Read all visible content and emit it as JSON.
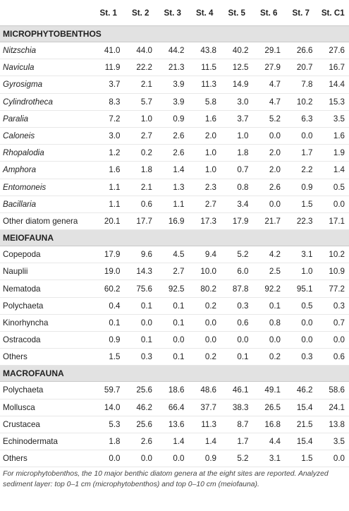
{
  "columns": [
    "",
    "St. 1",
    "St. 2",
    "St. 3",
    "St. 4",
    "St. 5",
    "St. 6",
    "St. 7",
    "St. C1"
  ],
  "sections": [
    {
      "title": "MICROPHYTOBENTHOS",
      "italic": true,
      "rows": [
        {
          "name": "Nitzschia",
          "values": [
            "41.0",
            "44.0",
            "44.2",
            "43.8",
            "40.2",
            "29.1",
            "26.6",
            "27.6"
          ],
          "italic": true
        },
        {
          "name": "Navicula",
          "values": [
            "11.9",
            "22.2",
            "21.3",
            "11.5",
            "12.5",
            "27.9",
            "20.7",
            "16.7"
          ],
          "italic": true
        },
        {
          "name": "Gyrosigma",
          "values": [
            "3.7",
            "2.1",
            "3.9",
            "11.3",
            "14.9",
            "4.7",
            "7.8",
            "14.4"
          ],
          "italic": true
        },
        {
          "name": "Cylindrotheca",
          "values": [
            "8.3",
            "5.7",
            "3.9",
            "5.8",
            "3.0",
            "4.7",
            "10.2",
            "15.3"
          ],
          "italic": true
        },
        {
          "name": "Paralia",
          "values": [
            "7.2",
            "1.0",
            "0.9",
            "1.6",
            "3.7",
            "5.2",
            "6.3",
            "3.5"
          ],
          "italic": true
        },
        {
          "name": "Caloneis",
          "values": [
            "3.0",
            "2.7",
            "2.6",
            "2.0",
            "1.0",
            "0.0",
            "0.0",
            "1.6"
          ],
          "italic": true
        },
        {
          "name": "Rhopalodia",
          "values": [
            "1.2",
            "0.2",
            "2.6",
            "1.0",
            "1.8",
            "2.0",
            "1.7",
            "1.9"
          ],
          "italic": true
        },
        {
          "name": "Amphora",
          "values": [
            "1.6",
            "1.8",
            "1.4",
            "1.0",
            "0.7",
            "2.0",
            "2.2",
            "1.4"
          ],
          "italic": true
        },
        {
          "name": "Entomoneis",
          "values": [
            "1.1",
            "2.1",
            "1.3",
            "2.3",
            "0.8",
            "2.6",
            "0.9",
            "0.5"
          ],
          "italic": true
        },
        {
          "name": "Bacillaria",
          "values": [
            "1.1",
            "0.6",
            "1.1",
            "2.7",
            "3.4",
            "0.0",
            "1.5",
            "0.0"
          ],
          "italic": true
        },
        {
          "name": "Other diatom genera",
          "values": [
            "20.1",
            "17.7",
            "16.9",
            "17.3",
            "17.9",
            "21.7",
            "22.3",
            "17.1"
          ],
          "italic": false
        }
      ]
    },
    {
      "title": "MEIOFAUNA",
      "rows": [
        {
          "name": "Copepoda",
          "values": [
            "17.9",
            "9.6",
            "4.5",
            "9.4",
            "5.2",
            "4.2",
            "3.1",
            "10.2"
          ],
          "italic": false
        },
        {
          "name": "Nauplii",
          "values": [
            "19.0",
            "14.3",
            "2.7",
            "10.0",
            "6.0",
            "2.5",
            "1.0",
            "10.9"
          ],
          "italic": false
        },
        {
          "name": "Nematoda",
          "values": [
            "60.2",
            "75.6",
            "92.5",
            "80.2",
            "87.8",
            "92.2",
            "95.1",
            "77.2"
          ],
          "italic": false
        },
        {
          "name": "Polychaeta",
          "values": [
            "0.4",
            "0.1",
            "0.1",
            "0.2",
            "0.3",
            "0.1",
            "0.5",
            "0.3"
          ],
          "italic": false
        },
        {
          "name": "Kinorhyncha",
          "values": [
            "0.1",
            "0.0",
            "0.1",
            "0.0",
            "0.6",
            "0.8",
            "0.0",
            "0.7"
          ],
          "italic": false
        },
        {
          "name": "Ostracoda",
          "values": [
            "0.9",
            "0.1",
            "0.0",
            "0.0",
            "0.0",
            "0.0",
            "0.0",
            "0.0"
          ],
          "italic": false
        },
        {
          "name": "Others",
          "values": [
            "1.5",
            "0.3",
            "0.1",
            "0.2",
            "0.1",
            "0.2",
            "0.3",
            "0.6"
          ],
          "italic": false
        }
      ]
    },
    {
      "title": "MACROFAUNA",
      "rows": [
        {
          "name": "Polychaeta",
          "values": [
            "59.7",
            "25.6",
            "18.6",
            "48.6",
            "46.1",
            "49.1",
            "46.2",
            "58.6"
          ],
          "italic": false
        },
        {
          "name": "Mollusca",
          "values": [
            "14.0",
            "46.2",
            "66.4",
            "37.7",
            "38.3",
            "26.5",
            "15.4",
            "24.1"
          ],
          "italic": false
        },
        {
          "name": "Crustacea",
          "values": [
            "5.3",
            "25.6",
            "13.6",
            "11.3",
            "8.7",
            "16.8",
            "21.5",
            "13.8"
          ],
          "italic": false
        },
        {
          "name": "Echinodermata",
          "values": [
            "1.8",
            "2.6",
            "1.4",
            "1.4",
            "1.7",
            "4.4",
            "15.4",
            "3.5"
          ],
          "italic": false
        },
        {
          "name": "Others",
          "values": [
            "0.0",
            "0.0",
            "0.0",
            "0.9",
            "5.2",
            "3.1",
            "1.5",
            "0.0"
          ],
          "italic": false
        }
      ]
    }
  ],
  "footnote": "For microphytobenthos, the 10 major benthic diatom genera at the eight sites are reported. Analyzed sediment layer: top 0–1 cm (microphytobenthos) and top 0–10 cm (meiofauna)."
}
